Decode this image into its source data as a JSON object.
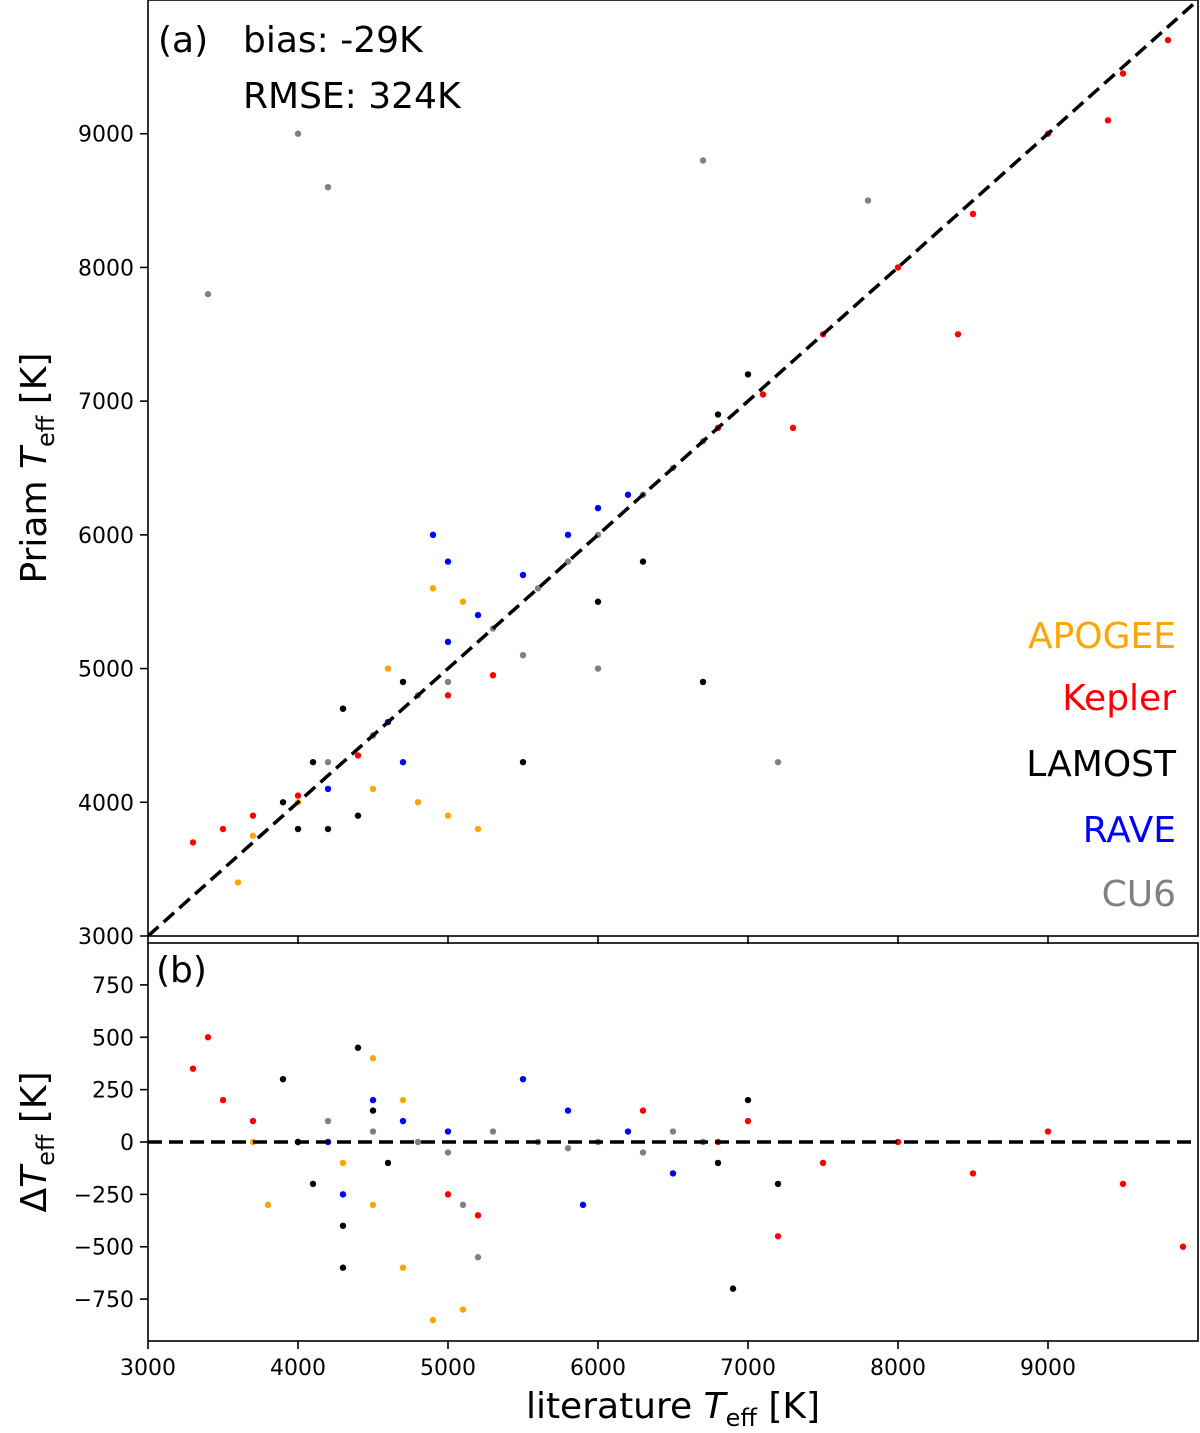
{
  "chart_data": [
    {
      "id": "panel-a",
      "type": "scatter",
      "panel_label": "(a)",
      "annotations": [
        "bias: -29K",
        "RMSE: 324K"
      ],
      "xlabel": "",
      "ylabel": {
        "main": "Priam ",
        "var": "T",
        "sub": "eff",
        "unit": " [K]"
      },
      "xlim": [
        3000,
        10000
      ],
      "ylim": [
        3000,
        10000
      ],
      "x_ticks": [
        3000,
        4000,
        5000,
        6000,
        7000,
        8000,
        9000
      ],
      "y_ticks": [
        3000,
        4000,
        5000,
        6000,
        7000,
        8000,
        9000
      ],
      "y_tick_labels": [
        "3000",
        "4000",
        "5000",
        "6000",
        "7000",
        "8000",
        "9000"
      ],
      "reference_line": {
        "style": "dashed",
        "slope": 1,
        "intercept": 0,
        "color": "#000000"
      },
      "legend": {
        "placement": "lower-right",
        "entries": [
          {
            "name": "APOGEE",
            "color": "#FFA500"
          },
          {
            "name": "Kepler",
            "color": "#FF0000"
          },
          {
            "name": "LAMOST",
            "color": "#000000"
          },
          {
            "name": "RAVE",
            "color": "#0000FF"
          },
          {
            "name": "CU6",
            "color": "#808080"
          }
        ]
      },
      "series": [
        {
          "name": "Kepler",
          "color": "#FF0000",
          "points": [
            [
              3300,
              3700
            ],
            [
              3500,
              3800
            ],
            [
              3700,
              3900
            ],
            [
              4000,
              4050
            ],
            [
              4400,
              4350
            ],
            [
              5000,
              4800
            ],
            [
              5300,
              4950
            ],
            [
              6300,
              6300
            ],
            [
              6800,
              6800
            ],
            [
              7100,
              7050
            ],
            [
              7500,
              7500
            ],
            [
              8000,
              8000
            ],
            [
              8500,
              8400
            ],
            [
              9000,
              9000
            ],
            [
              9500,
              9450
            ],
            [
              9800,
              9700
            ],
            [
              7300,
              6800
            ],
            [
              8400,
              7500
            ],
            [
              9400,
              9100
            ]
          ]
        },
        {
          "name": "APOGEE",
          "color": "#FFA500",
          "points": [
            [
              3700,
              3750
            ],
            [
              4000,
              4000
            ],
            [
              4500,
              4100
            ],
            [
              4800,
              4000
            ],
            [
              5000,
              3900
            ],
            [
              5200,
              3800
            ],
            [
              4600,
              5000
            ],
            [
              4900,
              5600
            ],
            [
              5100,
              5500
            ],
            [
              4300,
              4700
            ],
            [
              3600,
              3400
            ]
          ]
        },
        {
          "name": "LAMOST",
          "color": "#000000",
          "points": [
            [
              3900,
              4000
            ],
            [
              4000,
              3800
            ],
            [
              4100,
              4300
            ],
            [
              4300,
              4700
            ],
            [
              4500,
              4500
            ],
            [
              4400,
              3900
            ],
            [
              4700,
              4900
            ],
            [
              6800,
              6900
            ],
            [
              7000,
              7200
            ],
            [
              6300,
              5800
            ],
            [
              6000,
              5500
            ],
            [
              6700,
              4900
            ],
            [
              5500,
              4300
            ],
            [
              4200,
              3800
            ]
          ]
        },
        {
          "name": "RAVE",
          "color": "#0000FF",
          "points": [
            [
              4200,
              4100
            ],
            [
              4600,
              4600
            ],
            [
              4700,
              4300
            ],
            [
              5000,
              5200
            ],
            [
              5200,
              5400
            ],
            [
              5500,
              5700
            ],
            [
              5800,
              6000
            ],
            [
              6200,
              6300
            ],
            [
              5000,
              5800
            ],
            [
              4900,
              6000
            ],
            [
              6000,
              6200
            ]
          ]
        },
        {
          "name": "CU6",
          "color": "#808080",
          "points": [
            [
              4200,
              4300
            ],
            [
              4500,
              4500
            ],
            [
              4800,
              4800
            ],
            [
              5000,
              4900
            ],
            [
              5300,
              5300
            ],
            [
              5600,
              5600
            ],
            [
              5800,
              5800
            ],
            [
              6000,
              6000
            ],
            [
              6300,
              6300
            ],
            [
              6500,
              6500
            ],
            [
              6700,
              6700
            ],
            [
              4000,
              9000
            ],
            [
              3400,
              7800
            ],
            [
              4200,
              8600
            ],
            [
              6700,
              8800
            ],
            [
              7800,
              8500
            ],
            [
              5500,
              5100
            ],
            [
              6000,
              5000
            ],
            [
              7200,
              4300
            ]
          ]
        }
      ]
    },
    {
      "id": "panel-b",
      "type": "scatter",
      "panel_label": "(b)",
      "xlabel": {
        "main": "literature ",
        "var": "T",
        "sub": "eff",
        "unit": " [K]"
      },
      "ylabel": {
        "main": "Δ",
        "var": "T",
        "sub": "eff",
        "unit": " [K]"
      },
      "xlim": [
        3000,
        10000
      ],
      "ylim": [
        -950,
        950
      ],
      "x_ticks": [
        3000,
        4000,
        5000,
        6000,
        7000,
        8000,
        9000
      ],
      "x_tick_labels": [
        "3000",
        "4000",
        "5000",
        "6000",
        "7000",
        "8000",
        "9000"
      ],
      "y_ticks": [
        -750,
        -500,
        -250,
        0,
        250,
        500,
        750
      ],
      "y_tick_labels": [
        "−750",
        "−500",
        "−250",
        "0",
        "250",
        "500",
        "750"
      ],
      "reference_line": {
        "style": "dashed",
        "slope": 0,
        "intercept": 0,
        "color": "#000000"
      },
      "series": [
        {
          "name": "Kepler",
          "color": "#FF0000",
          "points": [
            [
              3300,
              350
            ],
            [
              3500,
              200
            ],
            [
              3700,
              100
            ],
            [
              4000,
              0
            ],
            [
              5000,
              -250
            ],
            [
              5200,
              -350
            ],
            [
              6300,
              150
            ],
            [
              6800,
              0
            ],
            [
              7000,
              100
            ],
            [
              7500,
              -100
            ],
            [
              8000,
              0
            ],
            [
              8500,
              -150
            ],
            [
              9000,
              50
            ],
            [
              9500,
              -200
            ],
            [
              9900,
              -500
            ],
            [
              3400,
              500
            ],
            [
              7200,
              -450
            ]
          ]
        },
        {
          "name": "APOGEE",
          "color": "#FFA500",
          "points": [
            [
              3700,
              0
            ],
            [
              3800,
              -300
            ],
            [
              4500,
              -300
            ],
            [
              4700,
              -600
            ],
            [
              4900,
              -850
            ],
            [
              5100,
              -800
            ],
            [
              4700,
              200
            ],
            [
              4500,
              400
            ],
            [
              4300,
              -100
            ]
          ]
        },
        {
          "name": "LAMOST",
          "color": "#000000",
          "points": [
            [
              3900,
              300
            ],
            [
              4000,
              0
            ],
            [
              4100,
              -200
            ],
            [
              4300,
              -400
            ],
            [
              4400,
              450
            ],
            [
              4500,
              150
            ],
            [
              4600,
              -100
            ],
            [
              6800,
              -100
            ],
            [
              7000,
              200
            ],
            [
              7200,
              -200
            ],
            [
              6900,
              -700
            ],
            [
              4300,
              -600
            ]
          ]
        },
        {
          "name": "RAVE",
          "color": "#0000FF",
          "points": [
            [
              4200,
              0
            ],
            [
              4500,
              200
            ],
            [
              4700,
              100
            ],
            [
              5000,
              50
            ],
            [
              5500,
              300
            ],
            [
              5800,
              150
            ],
            [
              6200,
              50
            ],
            [
              6500,
              -150
            ],
            [
              5900,
              -300
            ],
            [
              4300,
              -250
            ]
          ]
        },
        {
          "name": "CU6",
          "color": "#808080",
          "points": [
            [
              4200,
              100
            ],
            [
              4500,
              50
            ],
            [
              4800,
              0
            ],
            [
              5000,
              -50
            ],
            [
              5300,
              50
            ],
            [
              5600,
              0
            ],
            [
              5800,
              -30
            ],
            [
              6000,
              0
            ],
            [
              6300,
              -50
            ],
            [
              6500,
              50
            ],
            [
              6700,
              0
            ],
            [
              5100,
              -300
            ],
            [
              5200,
              -550
            ]
          ]
        }
      ]
    }
  ]
}
